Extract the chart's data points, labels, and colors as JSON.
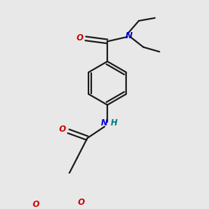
{
  "bg_color": "#e8e8e8",
  "bond_color": "#1a1a1a",
  "O_color": "#cc0000",
  "N_color": "#0000cc",
  "NH_color": "#008080",
  "line_width": 1.6,
  "dbo": 0.012,
  "font_size": 8.5,
  "fig_size": [
    3.0,
    3.0
  ],
  "xlim": [
    0,
    300
  ],
  "ylim": [
    0,
    300
  ]
}
